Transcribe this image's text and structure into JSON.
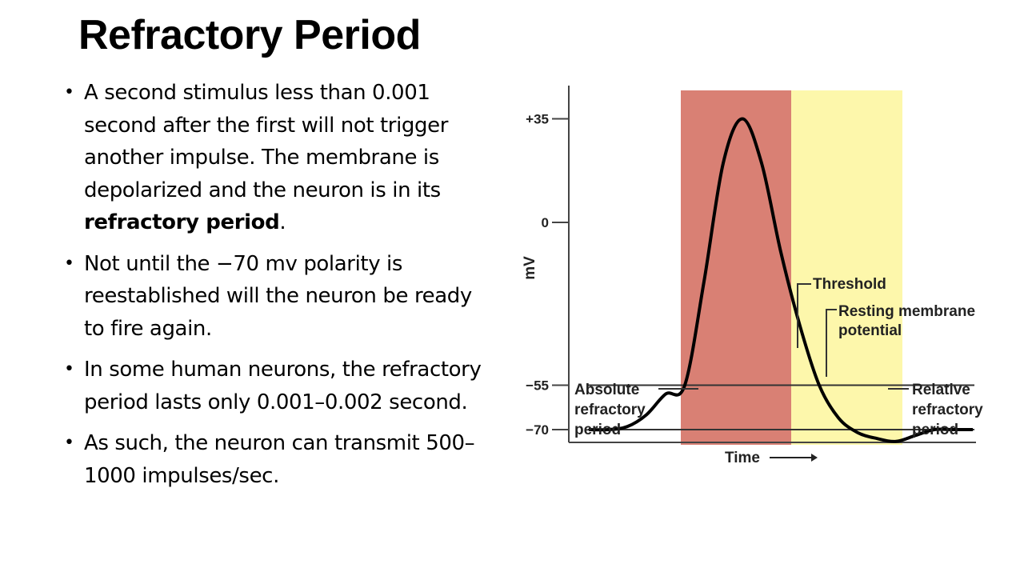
{
  "slide": {
    "title": "Refractory Period"
  },
  "bullets": [
    {
      "parts": [
        {
          "text": "A second stimulus less than 0.001 second after the first will not trigger another impulse. The membrane is depolarized and the neuron is in its ",
          "bold": false
        },
        {
          "text": "refractory period",
          "bold": true
        },
        {
          "text": ".",
          "bold": false
        }
      ]
    },
    {
      "parts": [
        {
          "text": "Not until the −70 mv polarity is reestablished will the neuron be ready to fire again.",
          "bold": false
        }
      ]
    },
    {
      "parts": [
        {
          "text": "In some human neurons, the refractory period lasts only 0.001–0.002 second.",
          "bold": false
        }
      ]
    },
    {
      "parts": [
        {
          "text": "As such, the neuron can transmit 500–1000 impulses/sec.",
          "bold": false
        }
      ]
    }
  ],
  "chart_data": {
    "type": "line",
    "ylabel": "mV",
    "xlabel": "Time",
    "y_ticks": [
      "+35",
      "0",
      "−55",
      "−70"
    ],
    "y_tick_values": [
      35,
      0,
      -55,
      -70
    ],
    "threshold": -55,
    "resting_potential": -70,
    "series": [
      {
        "values": [
          -70,
          -70,
          -69,
          -65,
          -58,
          -55,
          -20,
          20,
          35,
          20,
          -10,
          -35,
          -55,
          -66,
          -71,
          -73,
          -74,
          -72,
          -70,
          -70,
          -70
        ]
      }
    ],
    "labels": {
      "threshold": "Threshold",
      "resting": [
        "Resting membrane",
        "potential"
      ],
      "absolute": [
        "Absolute",
        "refractory",
        "period"
      ],
      "relative": [
        "Relative",
        "refractory",
        "period"
      ]
    },
    "colors": {
      "absolute_refractory": "#d98074",
      "relative_refractory": "#fdf7ab",
      "trace": "#000000"
    }
  }
}
